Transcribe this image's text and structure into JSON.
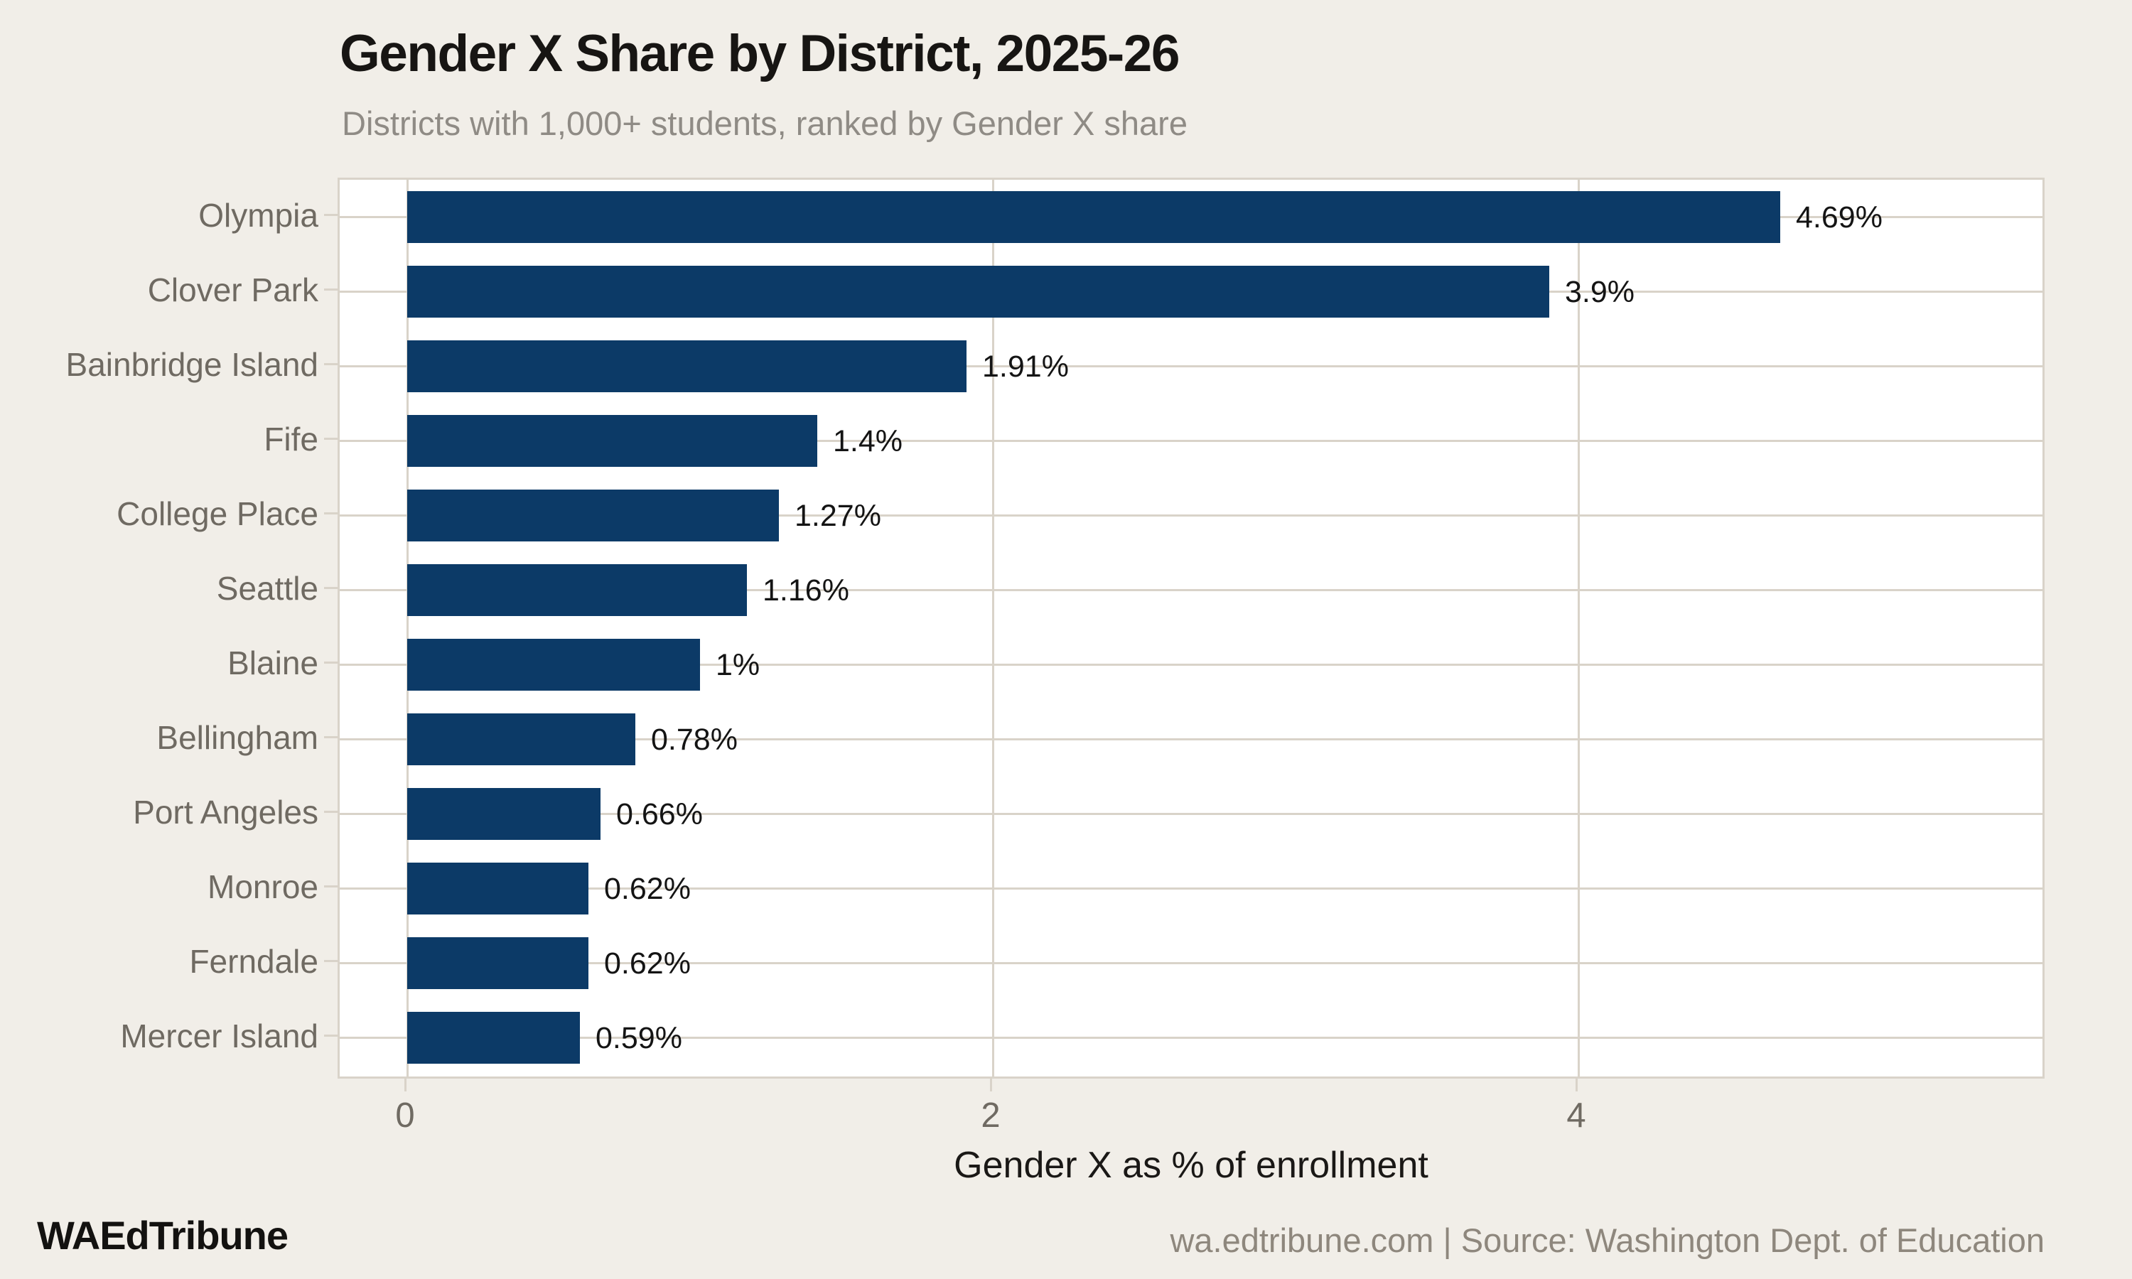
{
  "header": {
    "title": "Gender X Share by District, 2025-26",
    "subtitle": "Districts with 1,000+ students, ranked by Gender X share"
  },
  "chart_data": {
    "type": "bar",
    "orientation": "horizontal",
    "title": "Gender X Share by District, 2025-26",
    "subtitle": "Districts with 1,000+ students, ranked by Gender X share",
    "categories": [
      "Olympia",
      "Clover Park",
      "Bainbridge Island",
      "Fife",
      "College Place",
      "Seattle",
      "Blaine",
      "Bellingham",
      "Port Angeles",
      "Monroe",
      "Ferndale",
      "Mercer Island"
    ],
    "values": [
      4.69,
      3.9,
      1.91,
      1.4,
      1.27,
      1.16,
      1,
      0.78,
      0.66,
      0.62,
      0.62,
      0.59
    ],
    "value_labels": [
      "4.69%",
      "3.9%",
      "1.91%",
      "1.4%",
      "1.27%",
      "1.16%",
      "1%",
      "0.78%",
      "0.66%",
      "0.62%",
      "0.62%",
      "0.59%"
    ],
    "xlabel": "Gender X as % of enrollment",
    "ylabel": "",
    "xlim": [
      0,
      5.6
    ],
    "xticks": [
      0,
      2,
      4
    ],
    "xtick_labels": [
      "0",
      "2",
      "4"
    ],
    "grid": true,
    "legend": false,
    "bar_color": "#0c3a67",
    "background_color": "#f1eee8",
    "panel_color": "#ffffff",
    "gridline_color": "#d9d3c9"
  },
  "footer": {
    "brand": "WAEdTribune",
    "source": "wa.edtribune.com | Source: Washington Dept. of Education"
  }
}
